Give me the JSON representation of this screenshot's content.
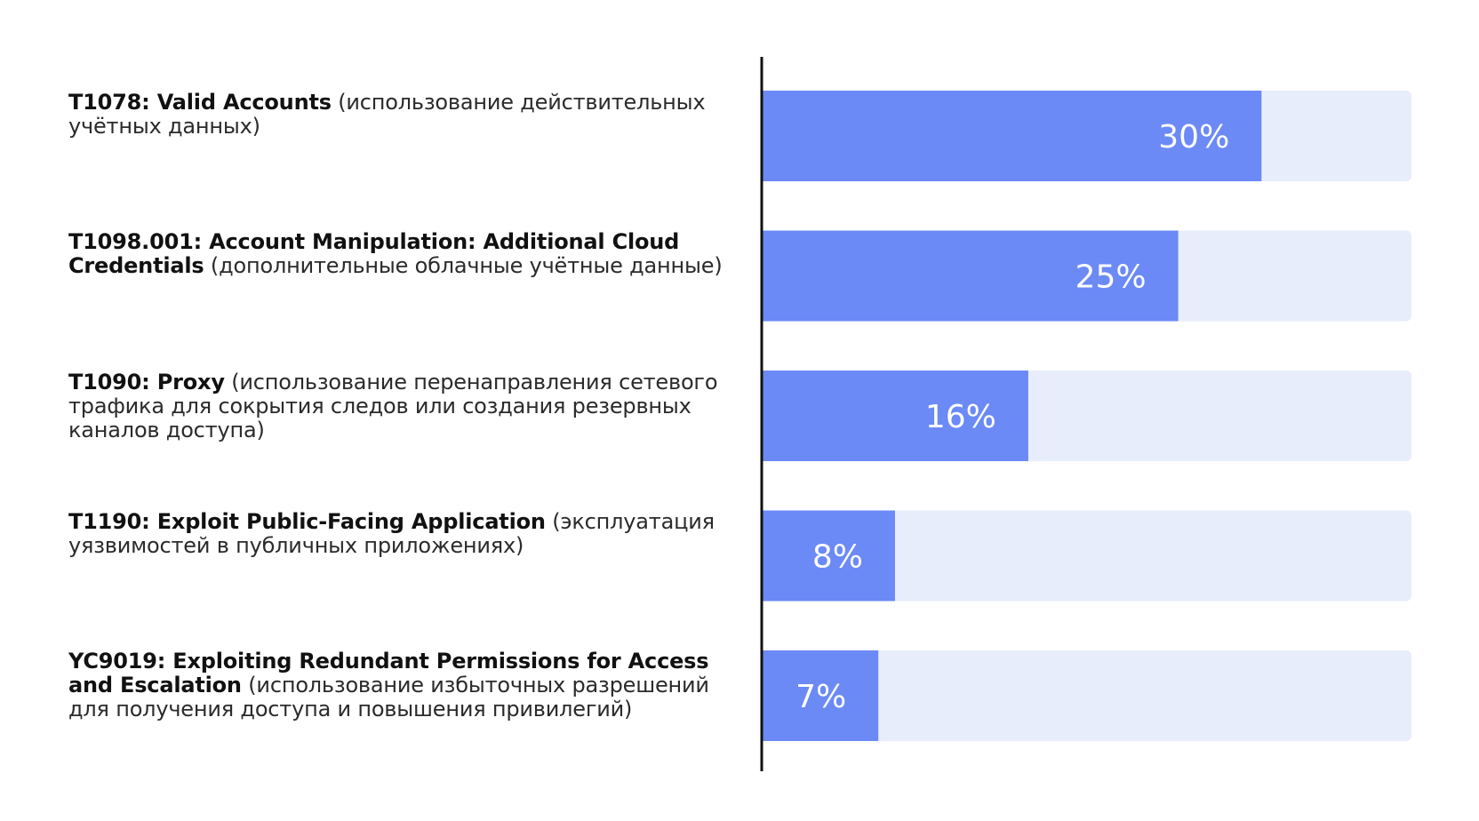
{
  "chart_data": {
    "type": "bar",
    "orientation": "horizontal",
    "categories": [
      {
        "code": "T1078: Valid Accounts",
        "description": "(использование действительных учётных данных)"
      },
      {
        "code": "T1098.001: Account Manipulation: Additional Cloud Credentials",
        "description": "(дополнительные облачные учётные данные)"
      },
      {
        "code": "T1090: Proxy",
        "description": "(использование перенаправления сетевого трафика для сокрытия следов или создания резервных каналов доступа)"
      },
      {
        "code": "T1190: Exploit Public-Facing Application",
        "description": "(эксплуатация уязвимостей в публичных приложениях)"
      },
      {
        "code": "YC9019: Exploiting Redundant Permissions for Access and Escalation",
        "description": "(использование избыточных разрешений для получения доступа и повышения привилегий)"
      }
    ],
    "values": [
      30,
      25,
      16,
      8,
      7
    ],
    "value_labels": [
      "30%",
      "25%",
      "16%",
      "8%",
      "7%"
    ],
    "xlim": [
      0,
      39
    ],
    "grid": false,
    "legend": "none",
    "colors": {
      "bar": "#6b8af5",
      "track": "#e8edfb",
      "axis": "#111111",
      "value_text": "#ffffff"
    }
  }
}
